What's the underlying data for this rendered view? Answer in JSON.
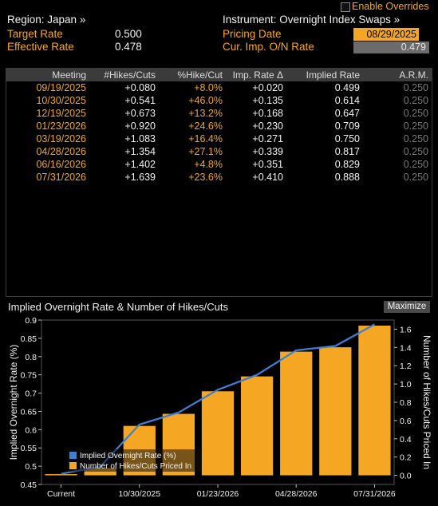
{
  "header": {
    "enable_overrides": "Enable Overrides",
    "region": "Region: Japan »",
    "instrument": "Instrument: Overnight Index Swaps »",
    "target_rate_label": "Target Rate",
    "target_rate_value": "0.500",
    "effective_rate_label": "Effective Rate",
    "effective_rate_value": "0.478",
    "pricing_date_label": "Pricing Date",
    "pricing_date_value": "08/29/2025",
    "cur_imp_label": "Cur. Imp. O/N Rate",
    "cur_imp_value": "0.479"
  },
  "table": {
    "headers": [
      "Meeting",
      "#Hikes/Cuts",
      "%Hike/Cut",
      "Imp. Rate Δ",
      "Implied Rate",
      "A.R.M."
    ],
    "rows": [
      [
        "09/19/2025",
        "+0.080",
        "+8.0%",
        "+0.020",
        "0.499",
        "0.250"
      ],
      [
        "10/30/2025",
        "+0.541",
        "+46.0%",
        "+0.135",
        "0.614",
        "0.250"
      ],
      [
        "12/19/2025",
        "+0.673",
        "+13.2%",
        "+0.168",
        "0.647",
        "0.250"
      ],
      [
        "01/23/2026",
        "+0.920",
        "+24.6%",
        "+0.230",
        "0.709",
        "0.250"
      ],
      [
        "03/19/2026",
        "+1.083",
        "+16.4%",
        "+0.271",
        "0.750",
        "0.250"
      ],
      [
        "04/28/2026",
        "+1.354",
        "+27.1%",
        "+0.339",
        "0.817",
        "0.250"
      ],
      [
        "06/16/2026",
        "+1.402",
        "+4.8%",
        "+0.351",
        "0.829",
        "0.250"
      ],
      [
        "07/31/2026",
        "+1.639",
        "+23.6%",
        "+0.410",
        "0.888",
        "0.250"
      ]
    ]
  },
  "chart_panel": {
    "title": "Implied Overnight Rate & Number of Hikes/Cuts",
    "maximize_label": "Maximize"
  },
  "colors": {
    "accent": "#f5a623",
    "line": "#3d7fd6",
    "bar": "#f5a623"
  },
  "chart_data": {
    "type": "bar",
    "categories": [
      "Current",
      "09/19/2025",
      "10/30/2025",
      "12/19/2025",
      "01/23/2026",
      "03/19/2026",
      "04/28/2026",
      "06/16/2026",
      "07/31/2026"
    ],
    "x_tick_labels": [
      "Current",
      "10/30/2025",
      "01/23/2026",
      "04/28/2026",
      "07/31/2026"
    ],
    "series": [
      {
        "name": "Implied Overnight Rate (%)",
        "type": "line",
        "axis": "left",
        "values": [
          0.479,
          0.499,
          0.614,
          0.647,
          0.709,
          0.75,
          0.817,
          0.829,
          0.888
        ]
      },
      {
        "name": "Number of Hikes/Cuts Priced In",
        "type": "bar",
        "axis": "right",
        "values": [
          0.0,
          0.08,
          0.541,
          0.673,
          0.92,
          1.083,
          1.354,
          1.402,
          1.639
        ]
      }
    ],
    "ylabel": "Implied Overnight Rate (%)",
    "y2label": "Number of Hikes/Cuts Priced In",
    "ylim": [
      0.45,
      0.9
    ],
    "y2lim": [
      -0.1,
      1.7
    ],
    "yticks": [
      "0.45",
      "0.5",
      "0.55",
      "0.6",
      "0.65",
      "0.7",
      "0.75",
      "0.8",
      "0.85",
      "0.9"
    ],
    "y2ticks": [
      "0.0",
      "0.2",
      "0.4",
      "0.6",
      "0.8",
      "1.0",
      "1.2",
      "1.4",
      "1.6"
    ],
    "legend": "bottom-left",
    "grid": false
  }
}
